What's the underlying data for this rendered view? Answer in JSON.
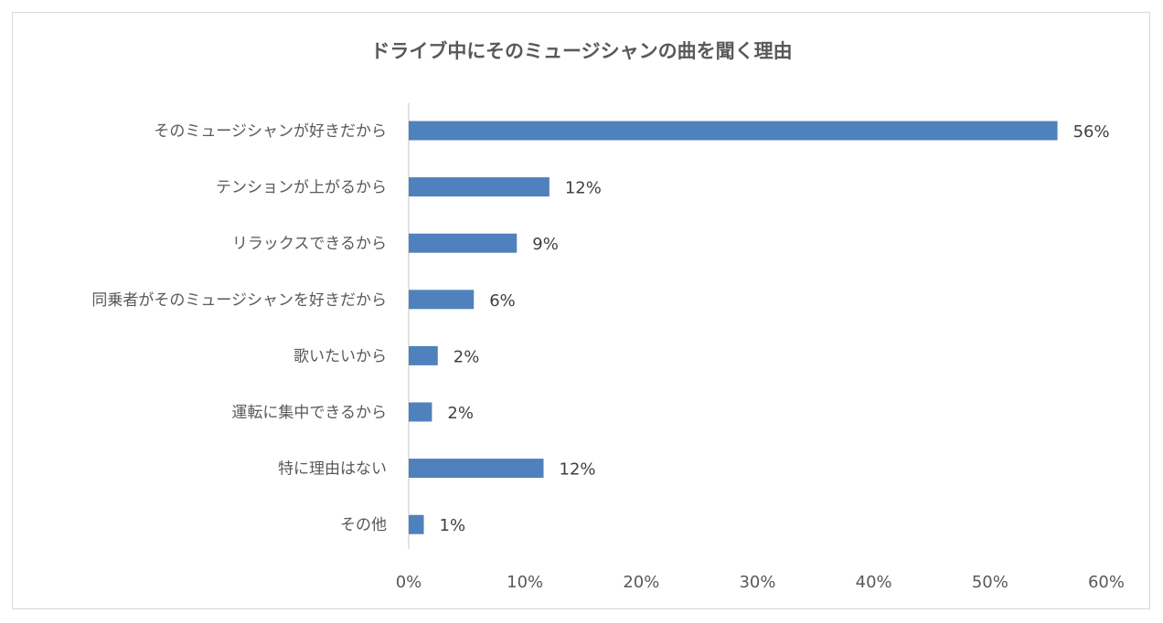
{
  "chart_data": {
    "type": "bar",
    "orientation": "horizontal",
    "title": "ドライブ中にそのミュージシャンの曲を聞く理由",
    "categories": [
      "そのミュージシャンが好きだから",
      "テンションが上がるから",
      "リラックスできるから",
      "同乗者がそのミュージシャンを好きだから",
      "歌いたいから",
      "運転に集中できるから",
      "特に理由はない",
      "その他"
    ],
    "values": [
      55.8,
      12.1,
      9.3,
      5.6,
      2.5,
      2.0,
      11.6,
      1.3
    ],
    "data_labels": [
      "56%",
      "12%",
      "9%",
      "6%",
      "2%",
      "2%",
      "12%",
      "1%"
    ],
    "xlim": [
      0,
      60
    ],
    "x_ticks": [
      "0%",
      "10%",
      "20%",
      "30%",
      "40%",
      "50%",
      "60%"
    ],
    "xlabel": "",
    "ylabel": "",
    "grid": false,
    "legend": "none",
    "bar_color": "#4f81bd"
  }
}
